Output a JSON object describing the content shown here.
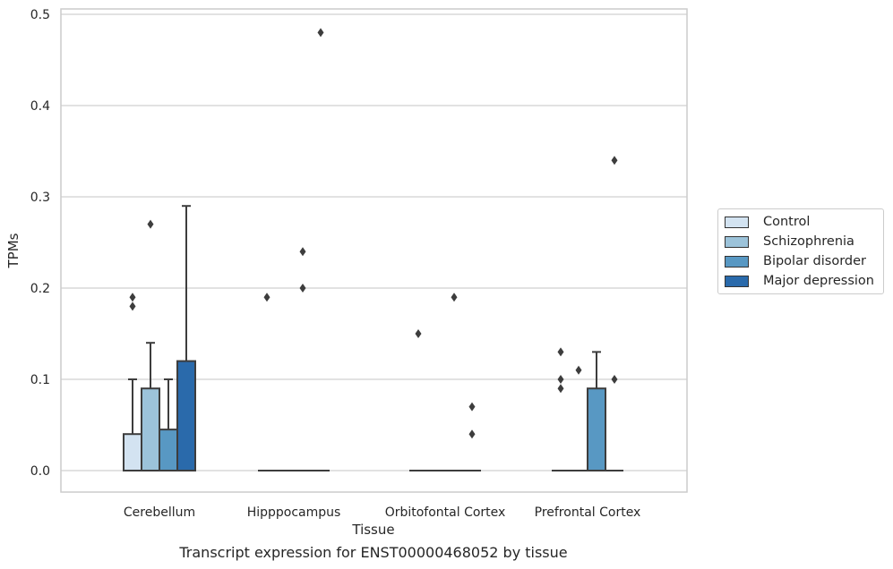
{
  "chart_data": {
    "type": "box",
    "caption": "Transcript expression for ENST00000468052 by tissue",
    "xlabel": "Tissue",
    "ylabel": "TPMs",
    "ylim": [
      -0.023,
      0.505
    ],
    "yticks": [
      "0.0",
      "0.1",
      "0.2",
      "0.3",
      "0.4",
      "0.5"
    ],
    "grid": true,
    "legend_placement": "center-right",
    "categories": [
      "Cerebellum",
      "Hipppocampus",
      "Orbitofontal Cortex",
      "Prefrontal Cortex"
    ],
    "series": [
      {
        "name": "Control",
        "color": "#d3e3f1",
        "boxes": [
          {
            "q1": 0.0,
            "median": 0.0,
            "q3": 0.04,
            "whisker_low": 0.0,
            "whisker_high": 0.1,
            "outliers": [
              0.19,
              0.18
            ]
          },
          {
            "q1": 0.0,
            "median": 0.0,
            "q3": 0.0,
            "whisker_low": 0.0,
            "whisker_high": 0.0,
            "outliers": [
              0.19
            ]
          },
          {
            "q1": 0.0,
            "median": 0.0,
            "q3": 0.0,
            "whisker_low": 0.0,
            "whisker_high": 0.0,
            "outliers": [
              0.15
            ]
          },
          {
            "q1": 0.0,
            "median": 0.0,
            "q3": 0.0,
            "whisker_low": 0.0,
            "whisker_high": 0.0,
            "outliers": [
              0.13,
              0.1,
              0.09
            ]
          }
        ]
      },
      {
        "name": "Schizophrenia",
        "color": "#9cc3da",
        "boxes": [
          {
            "q1": 0.0,
            "median": 0.0,
            "q3": 0.09,
            "whisker_low": 0.0,
            "whisker_high": 0.14,
            "outliers": [
              0.27
            ]
          },
          {
            "q1": 0.0,
            "median": 0.0,
            "q3": 0.0,
            "whisker_low": 0.0,
            "whisker_high": 0.0,
            "outliers": []
          },
          {
            "q1": 0.0,
            "median": 0.0,
            "q3": 0.0,
            "whisker_low": 0.0,
            "whisker_high": 0.0,
            "outliers": []
          },
          {
            "q1": 0.0,
            "median": 0.0,
            "q3": 0.0,
            "whisker_low": 0.0,
            "whisker_high": 0.0,
            "outliers": [
              0.11
            ]
          }
        ]
      },
      {
        "name": "Bipolar disorder",
        "color": "#5898c3",
        "boxes": [
          {
            "q1": 0.0,
            "median": 0.0,
            "q3": 0.045,
            "whisker_low": 0.0,
            "whisker_high": 0.1,
            "outliers": []
          },
          {
            "q1": 0.0,
            "median": 0.0,
            "q3": 0.0,
            "whisker_low": 0.0,
            "whisker_high": 0.0,
            "outliers": [
              0.24,
              0.2
            ]
          },
          {
            "q1": 0.0,
            "median": 0.0,
            "q3": 0.0,
            "whisker_low": 0.0,
            "whisker_high": 0.0,
            "outliers": [
              0.19
            ]
          },
          {
            "q1": 0.0,
            "median": 0.0,
            "q3": 0.09,
            "whisker_low": 0.0,
            "whisker_high": 0.13,
            "outliers": []
          }
        ]
      },
      {
        "name": "Major depression",
        "color": "#2a6aab",
        "boxes": [
          {
            "q1": 0.0,
            "median": 0.0,
            "q3": 0.12,
            "whisker_low": 0.0,
            "whisker_high": 0.29,
            "outliers": []
          },
          {
            "q1": 0.0,
            "median": 0.0,
            "q3": 0.0,
            "whisker_low": 0.0,
            "whisker_high": 0.0,
            "outliers": [
              0.48
            ]
          },
          {
            "q1": 0.0,
            "median": 0.0,
            "q3": 0.0,
            "whisker_low": 0.0,
            "whisker_high": 0.0,
            "outliers": [
              0.07,
              0.04
            ]
          },
          {
            "q1": 0.0,
            "median": 0.0,
            "q3": 0.0,
            "whisker_low": 0.0,
            "whisker_high": 0.0,
            "outliers": [
              0.34,
              0.1
            ]
          }
        ]
      }
    ]
  }
}
